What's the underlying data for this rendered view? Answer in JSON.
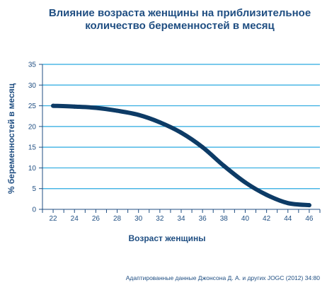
{
  "chart_data": {
    "type": "line",
    "title_lines": [
      "Влияние возраста женщины на приблизительное",
      "количество беременностей в месяц"
    ],
    "xlabel": "Возраст женщины",
    "ylabel": "% беременностей в месяц",
    "x_ticks": [
      22,
      24,
      26,
      28,
      30,
      32,
      34,
      36,
      38,
      40,
      42,
      44,
      46
    ],
    "y_ticks": [
      0,
      5,
      10,
      15,
      20,
      25,
      30,
      35
    ],
    "xlim": [
      21,
      47
    ],
    "ylim": [
      0,
      35
    ],
    "grid": "horizontal",
    "series": [
      {
        "color": "#0d3b66",
        "x": [
          22,
          24,
          26,
          28,
          30,
          32,
          34,
          36,
          38,
          40,
          42,
          44,
          46
        ],
        "y": [
          25,
          24.8,
          24.5,
          23.8,
          22.8,
          21,
          18.5,
          15,
          10.5,
          6.5,
          3.5,
          1.5,
          1
        ]
      }
    ],
    "source": "Адаптированные данные Джонсона Д. А. и других JOGC (2012) 34:80",
    "colors": {
      "text": "#1f4e82",
      "grid": "#29a9e0",
      "axis": "#1f4e82",
      "line": "#0d3b66"
    }
  }
}
